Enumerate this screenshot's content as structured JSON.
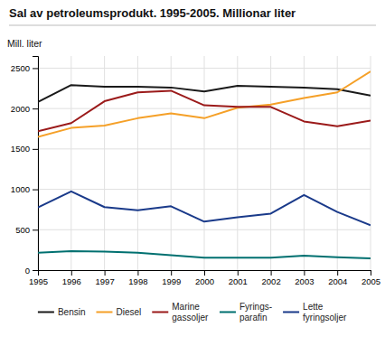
{
  "chart_data": {
    "type": "line",
    "title": "Sal av petroleumsprodukt. 1995-2005. Millionar liter",
    "y_label": "Mill. liter",
    "x": [
      1995,
      1996,
      1997,
      1998,
      1999,
      2000,
      2001,
      2002,
      2003,
      2004,
      2005
    ],
    "xlim": [
      1995,
      2005
    ],
    "xticks": [
      1995,
      1996,
      1997,
      1998,
      1999,
      2000,
      2001,
      2002,
      2003,
      2004,
      2005
    ],
    "ylim": [
      0,
      2650
    ],
    "yticks": [
      0,
      500,
      1000,
      1500,
      2000,
      2500
    ],
    "grid": true,
    "legend": "bottom",
    "series": [
      {
        "name": "Bensin",
        "color": "#1a1a1a",
        "values": [
          2080,
          2290,
          2270,
          2270,
          2260,
          2210,
          2280,
          2270,
          2260,
          2240,
          2160
        ]
      },
      {
        "name": "Diesel",
        "color": "#f5a028",
        "values": [
          1650,
          1760,
          1790,
          1880,
          1940,
          1880,
          2010,
          2050,
          2130,
          2200,
          2460
        ]
      },
      {
        "name": "Marine\ngassoljer",
        "color": "#9b1a1a",
        "values": [
          1720,
          1820,
          2090,
          2200,
          2220,
          2040,
          2020,
          2020,
          1840,
          1780,
          1850
        ]
      },
      {
        "name": "Fyrings-\nparafin",
        "color": "#007070",
        "values": [
          215,
          235,
          230,
          215,
          185,
          155,
          155,
          155,
          180,
          160,
          145
        ]
      },
      {
        "name": "Lette\nfyringsoljer",
        "color": "#1a3a8a",
        "values": [
          775,
          975,
          780,
          740,
          790,
          600,
          655,
          700,
          930,
          720,
          555
        ]
      }
    ]
  }
}
